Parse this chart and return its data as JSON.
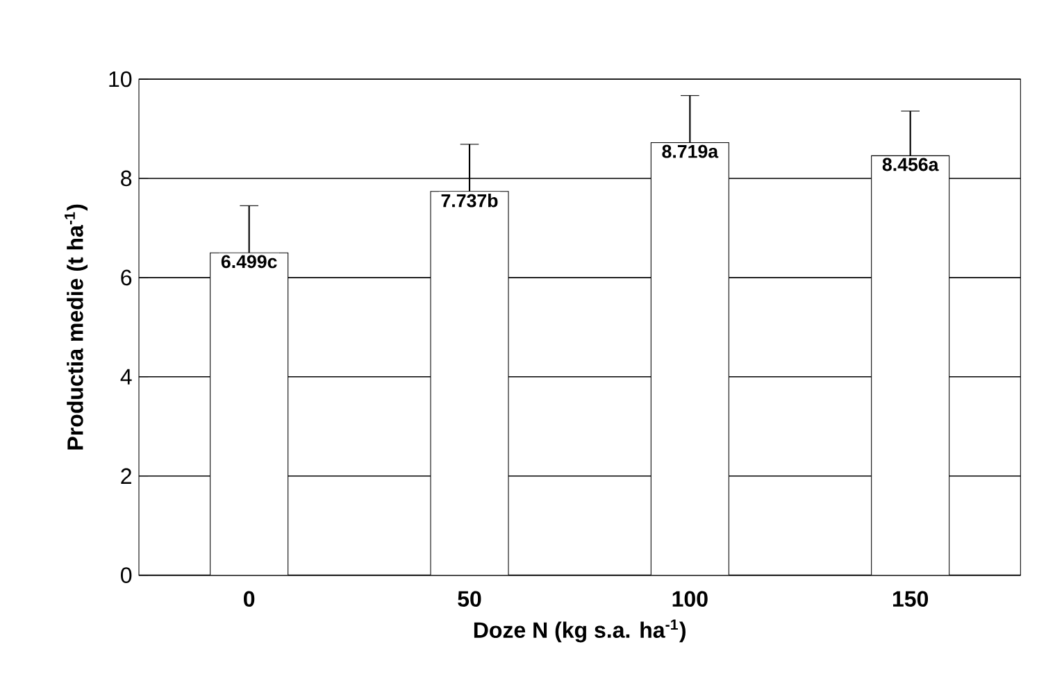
{
  "chart_data": {
    "type": "bar",
    "xlabel": "Doze N (kg s.a. ha$^{-1}$)",
    "ylabel": "Productia medie (t ha$^{-1}$)",
    "categories": [
      "0",
      "50",
      "100",
      "150"
    ],
    "values": [
      6.499,
      7.737,
      8.719,
      8.456
    ],
    "value_labels": [
      "6.499c",
      "7.737b",
      "8.719a",
      "8.456a"
    ],
    "errors": [
      0.95,
      0.95,
      0.95,
      0.9
    ],
    "color": "#ffffff",
    "ylim": [
      0,
      10
    ],
    "yticks": [
      0,
      2,
      4,
      6,
      8,
      10
    ],
    "grid": "y"
  }
}
